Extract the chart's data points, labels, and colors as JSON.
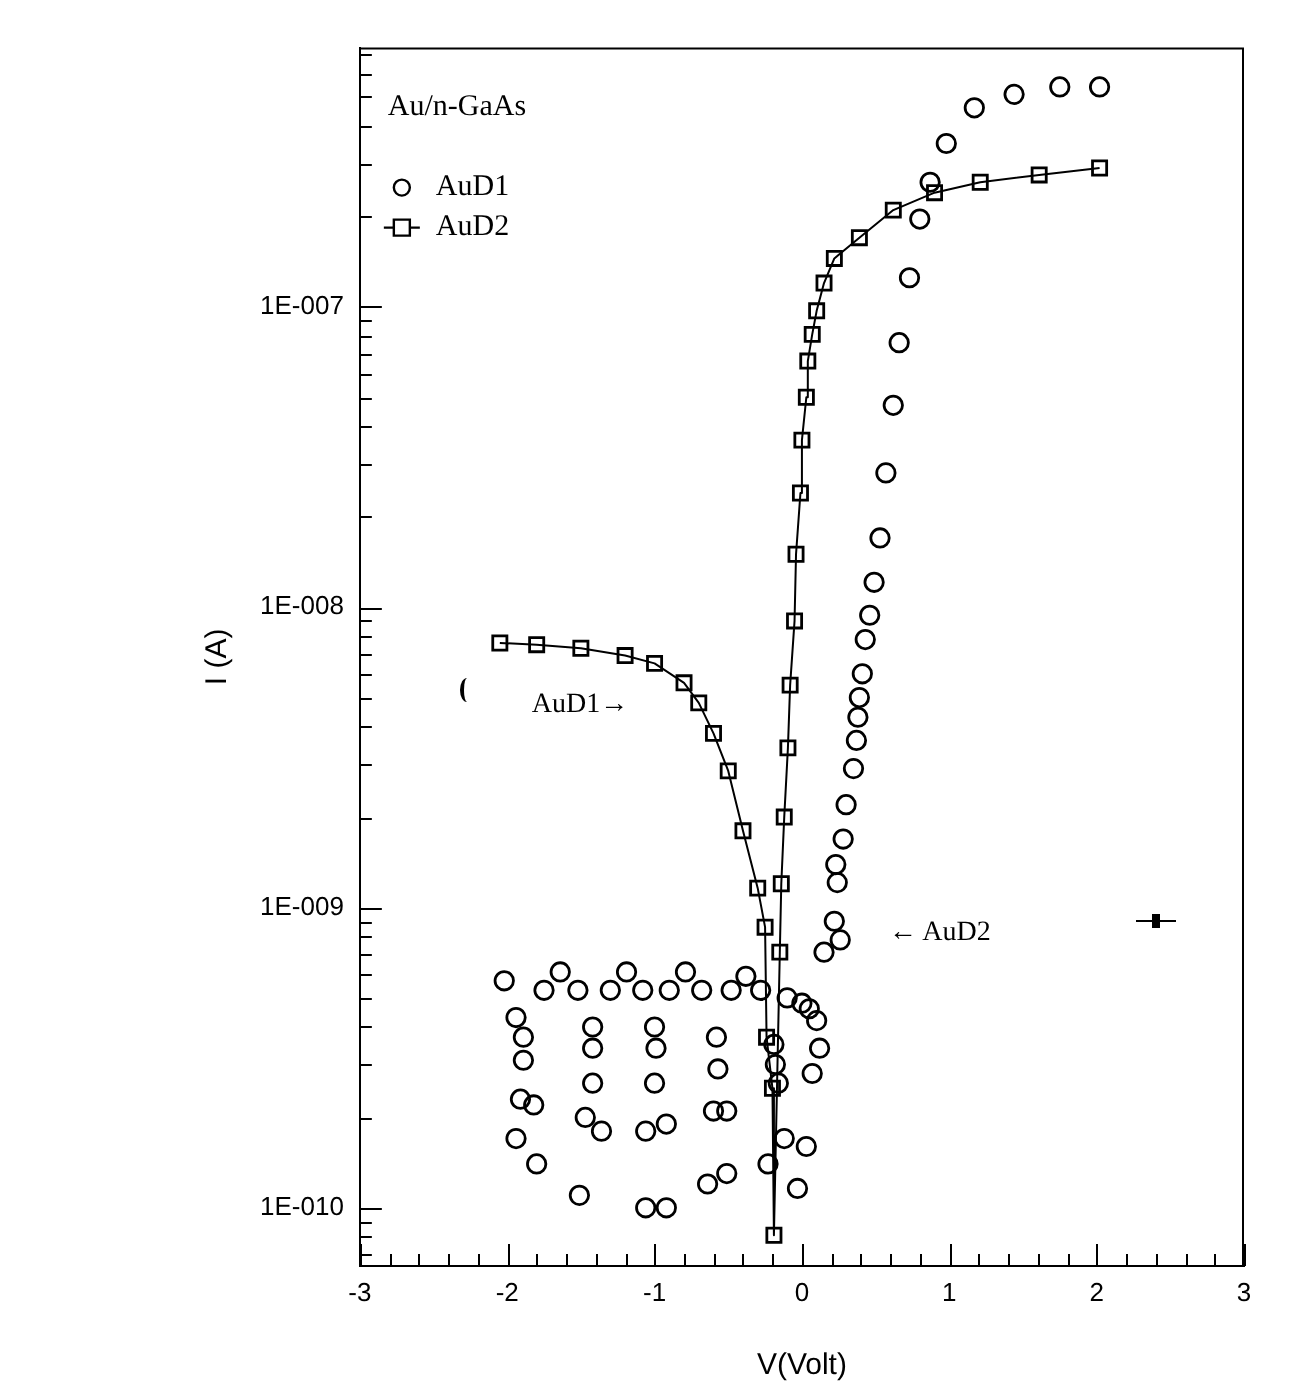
{
  "chart_data": {
    "type": "scatter",
    "title": "Au/n-GaAs",
    "xlabel": "V(Volt)",
    "ylabel": "I (A)",
    "log": "y",
    "legend": "top left",
    "xlim": [
      -3,
      3
    ],
    "ylim": [
      6.4e-11,
      7.3e-07
    ],
    "xticks": [
      -3,
      {
        "value": -2.8,
        "label": null
      },
      {
        "value": -2.6,
        "label": null
      },
      {
        "value": -2.4,
        "label": null
      },
      {
        "value": -2.2,
        "label": null
      },
      -2,
      {
        "value": -1.8,
        "label": null
      },
      {
        "value": -1.6,
        "label": null
      },
      {
        "value": -1.4,
        "label": null
      },
      {
        "value": -1.2,
        "label": null
      },
      -1,
      {
        "value": -0.8,
        "label": null
      },
      {
        "value": -0.6,
        "label": null
      },
      {
        "value": -0.4,
        "label": null
      },
      {
        "value": -0.2,
        "label": null
      },
      0,
      {
        "value": 0.2,
        "label": null
      },
      {
        "value": 0.4,
        "label": null
      },
      {
        "value": 0.6,
        "label": null
      },
      {
        "value": 0.8,
        "label": null
      },
      1,
      {
        "value": 1.2,
        "label": null
      },
      {
        "value": 1.4,
        "label": null
      },
      {
        "value": 1.6,
        "label": null
      },
      {
        "value": 1.8,
        "label": null
      },
      2,
      {
        "value": 2.2,
        "label": null
      },
      {
        "value": 2.4,
        "label": null
      },
      {
        "value": 2.6,
        "label": null
      },
      {
        "value": 2.8,
        "label": null
      },
      3
    ],
    "yticks": [
      {
        "value": 7e-11,
        "label": null
      },
      {
        "value": 8e-11,
        "label": null
      },
      {
        "value": 9e-11,
        "label": null
      },
      {
        "value": 1e-10,
        "label": "1E-010"
      },
      {
        "value": 2e-10,
        "label": null
      },
      {
        "value": 3e-10,
        "label": null
      },
      {
        "value": 4e-10,
        "label": null
      },
      {
        "value": 5e-10,
        "label": null
      },
      {
        "value": 6e-10,
        "label": null
      },
      {
        "value": 7e-10,
        "label": null
      },
      {
        "value": 8e-10,
        "label": null
      },
      {
        "value": 9e-10,
        "label": null
      },
      {
        "value": 1e-09,
        "label": "1E-009"
      },
      {
        "value": 2e-09,
        "label": null
      },
      {
        "value": 3e-09,
        "label": null
      },
      {
        "value": 4e-09,
        "label": null
      },
      {
        "value": 5e-09,
        "label": null
      },
      {
        "value": 6e-09,
        "label": null
      },
      {
        "value": 7e-09,
        "label": null
      },
      {
        "value": 8e-09,
        "label": null
      },
      {
        "value": 9e-09,
        "label": null
      },
      {
        "value": 1e-08,
        "label": "1E-008"
      },
      {
        "value": 2e-08,
        "label": null
      },
      {
        "value": 3e-08,
        "label": null
      },
      {
        "value": 4e-08,
        "label": null
      },
      {
        "value": 5e-08,
        "label": null
      },
      {
        "value": 6e-08,
        "label": null
      },
      {
        "value": 7e-08,
        "label": null
      },
      {
        "value": 8e-08,
        "label": null
      },
      {
        "value": 9e-08,
        "label": null
      },
      {
        "value": 1e-07,
        "label": "1E-007"
      },
      {
        "value": 2e-07,
        "label": null
      },
      {
        "value": 3e-07,
        "label": null
      },
      {
        "value": 4e-07,
        "label": null
      },
      {
        "value": 5e-07,
        "label": null
      },
      {
        "value": 6e-07,
        "label": null
      },
      {
        "value": 7e-07,
        "label": null
      }
    ],
    "annotations": [
      "AuD1→",
      "← AuD2"
    ],
    "series": [
      {
        "name": "AuD1",
        "type": "scatter",
        "marker": "circle",
        "color": "#000000",
        "x": [
          -2.02,
          -1.94,
          -1.94,
          -1.91,
          -1.89,
          -1.89,
          -1.82,
          -1.8,
          -1.75,
          -1.64,
          -1.52,
          -1.51,
          -1.47,
          -1.42,
          -1.42,
          -1.42,
          -1.36,
          -1.3,
          -1.19,
          -1.08,
          -1.06,
          -1.06,
          -1.0,
          -1.0,
          -0.99,
          -0.92,
          -0.92,
          -0.9,
          -0.79,
          -0.68,
          -0.64,
          -0.6,
          -0.58,
          -0.57,
          -0.51,
          -0.51,
          -0.48,
          -0.38,
          -0.28,
          -0.23,
          -0.19,
          -0.18,
          -0.16,
          -0.12,
          -0.1,
          -0.03,
          0.0,
          0.03,
          0.05,
          0.07,
          0.1,
          0.12,
          0.15,
          0.22,
          0.23,
          0.24,
          0.26,
          0.28,
          0.3,
          0.35,
          0.37,
          0.38,
          0.39,
          0.41,
          0.43,
          0.46,
          0.49,
          0.53,
          0.57,
          0.62,
          0.66,
          0.73,
          0.8,
          0.87,
          0.98,
          1.17,
          1.44,
          1.75,
          2.02
        ],
        "values": [
          5.7e-10,
          4.3e-10,
          1.7e-10,
          2.3e-10,
          3.7e-10,
          3.1e-10,
          2.2e-10,
          1.4e-10,
          5.3e-10,
          6.1e-10,
          5.3e-10,
          1.1e-10,
          2e-10,
          4e-10,
          3.4e-10,
          2.6e-10,
          1.8e-10,
          5.3e-10,
          6.1e-10,
          5.3e-10,
          1.8e-10,
          1e-10,
          4e-10,
          2.6e-10,
          3.4e-10,
          1.9e-10,
          1e-10,
          5.3e-10,
          6.1e-10,
          5.3e-10,
          1.2e-10,
          2.1e-10,
          3.7e-10,
          2.9e-10,
          2.1e-10,
          1.3e-10,
          5.3e-10,
          5.9e-10,
          5.3e-10,
          1.4e-10,
          3.5e-10,
          3e-10,
          2.6e-10,
          1.7e-10,
          5e-10,
          1.16e-10,
          4.8e-10,
          1.6e-10,
          4.6e-10,
          2.8e-10,
          4.2e-10,
          3.4e-10,
          7.1e-10,
          9e-10,
          1.39e-09,
          1.21e-09,
          7.8e-10,
          1.69e-09,
          2.2e-09,
          2.9e-09,
          3.6e-09,
          4.3e-09,
          5e-09,
          6e-09,
          7.8e-09,
          9.4e-09,
          1.21e-08,
          1.7e-08,
          2.8e-08,
          4.7e-08,
          7.6e-08,
          1.25e-07,
          1.96e-07,
          2.6e-07,
          3.5e-07,
          4.6e-07,
          5.1e-07,
          5.4e-07,
          5.4e-07
        ]
      },
      {
        "name": "AuD2",
        "type": "line",
        "marker": "square",
        "color": "#000000",
        "x": [
          -2.05,
          -1.8,
          -1.5,
          -1.2,
          -1.0,
          -0.8,
          -0.7,
          -0.6,
          -0.5,
          -0.4,
          -0.3,
          -0.25,
          -0.24,
          -0.2,
          -0.19,
          -0.15,
          -0.14,
          -0.12,
          -0.095,
          -0.08,
          -0.05,
          -0.04,
          -0.01,
          0.0,
          0.03,
          0.04,
          0.07,
          0.1,
          0.15,
          0.22,
          0.39,
          0.62,
          0.9,
          1.21,
          1.61,
          2.02
        ],
        "values": [
          7.6e-09,
          7.5e-09,
          7.3e-09,
          6.9e-09,
          6.5e-09,
          5.6e-09,
          4.8e-09,
          3.8e-09,
          2.85e-09,
          1.8e-09,
          1.16e-09,
          8.6e-10,
          3.7e-10,
          2.5e-10,
          8.1e-11,
          7.1e-10,
          1.2e-09,
          2e-09,
          3.4e-09,
          5.5e-09,
          9e-09,
          1.5e-08,
          2.4e-08,
          3.6e-08,
          5e-08,
          6.6e-08,
          8.1e-08,
          9.7e-08,
          1.2e-07,
          1.45e-07,
          1.7e-07,
          2.1e-07,
          2.4e-07,
          2.6e-07,
          2.75e-07,
          2.9e-07
        ]
      }
    ]
  }
}
